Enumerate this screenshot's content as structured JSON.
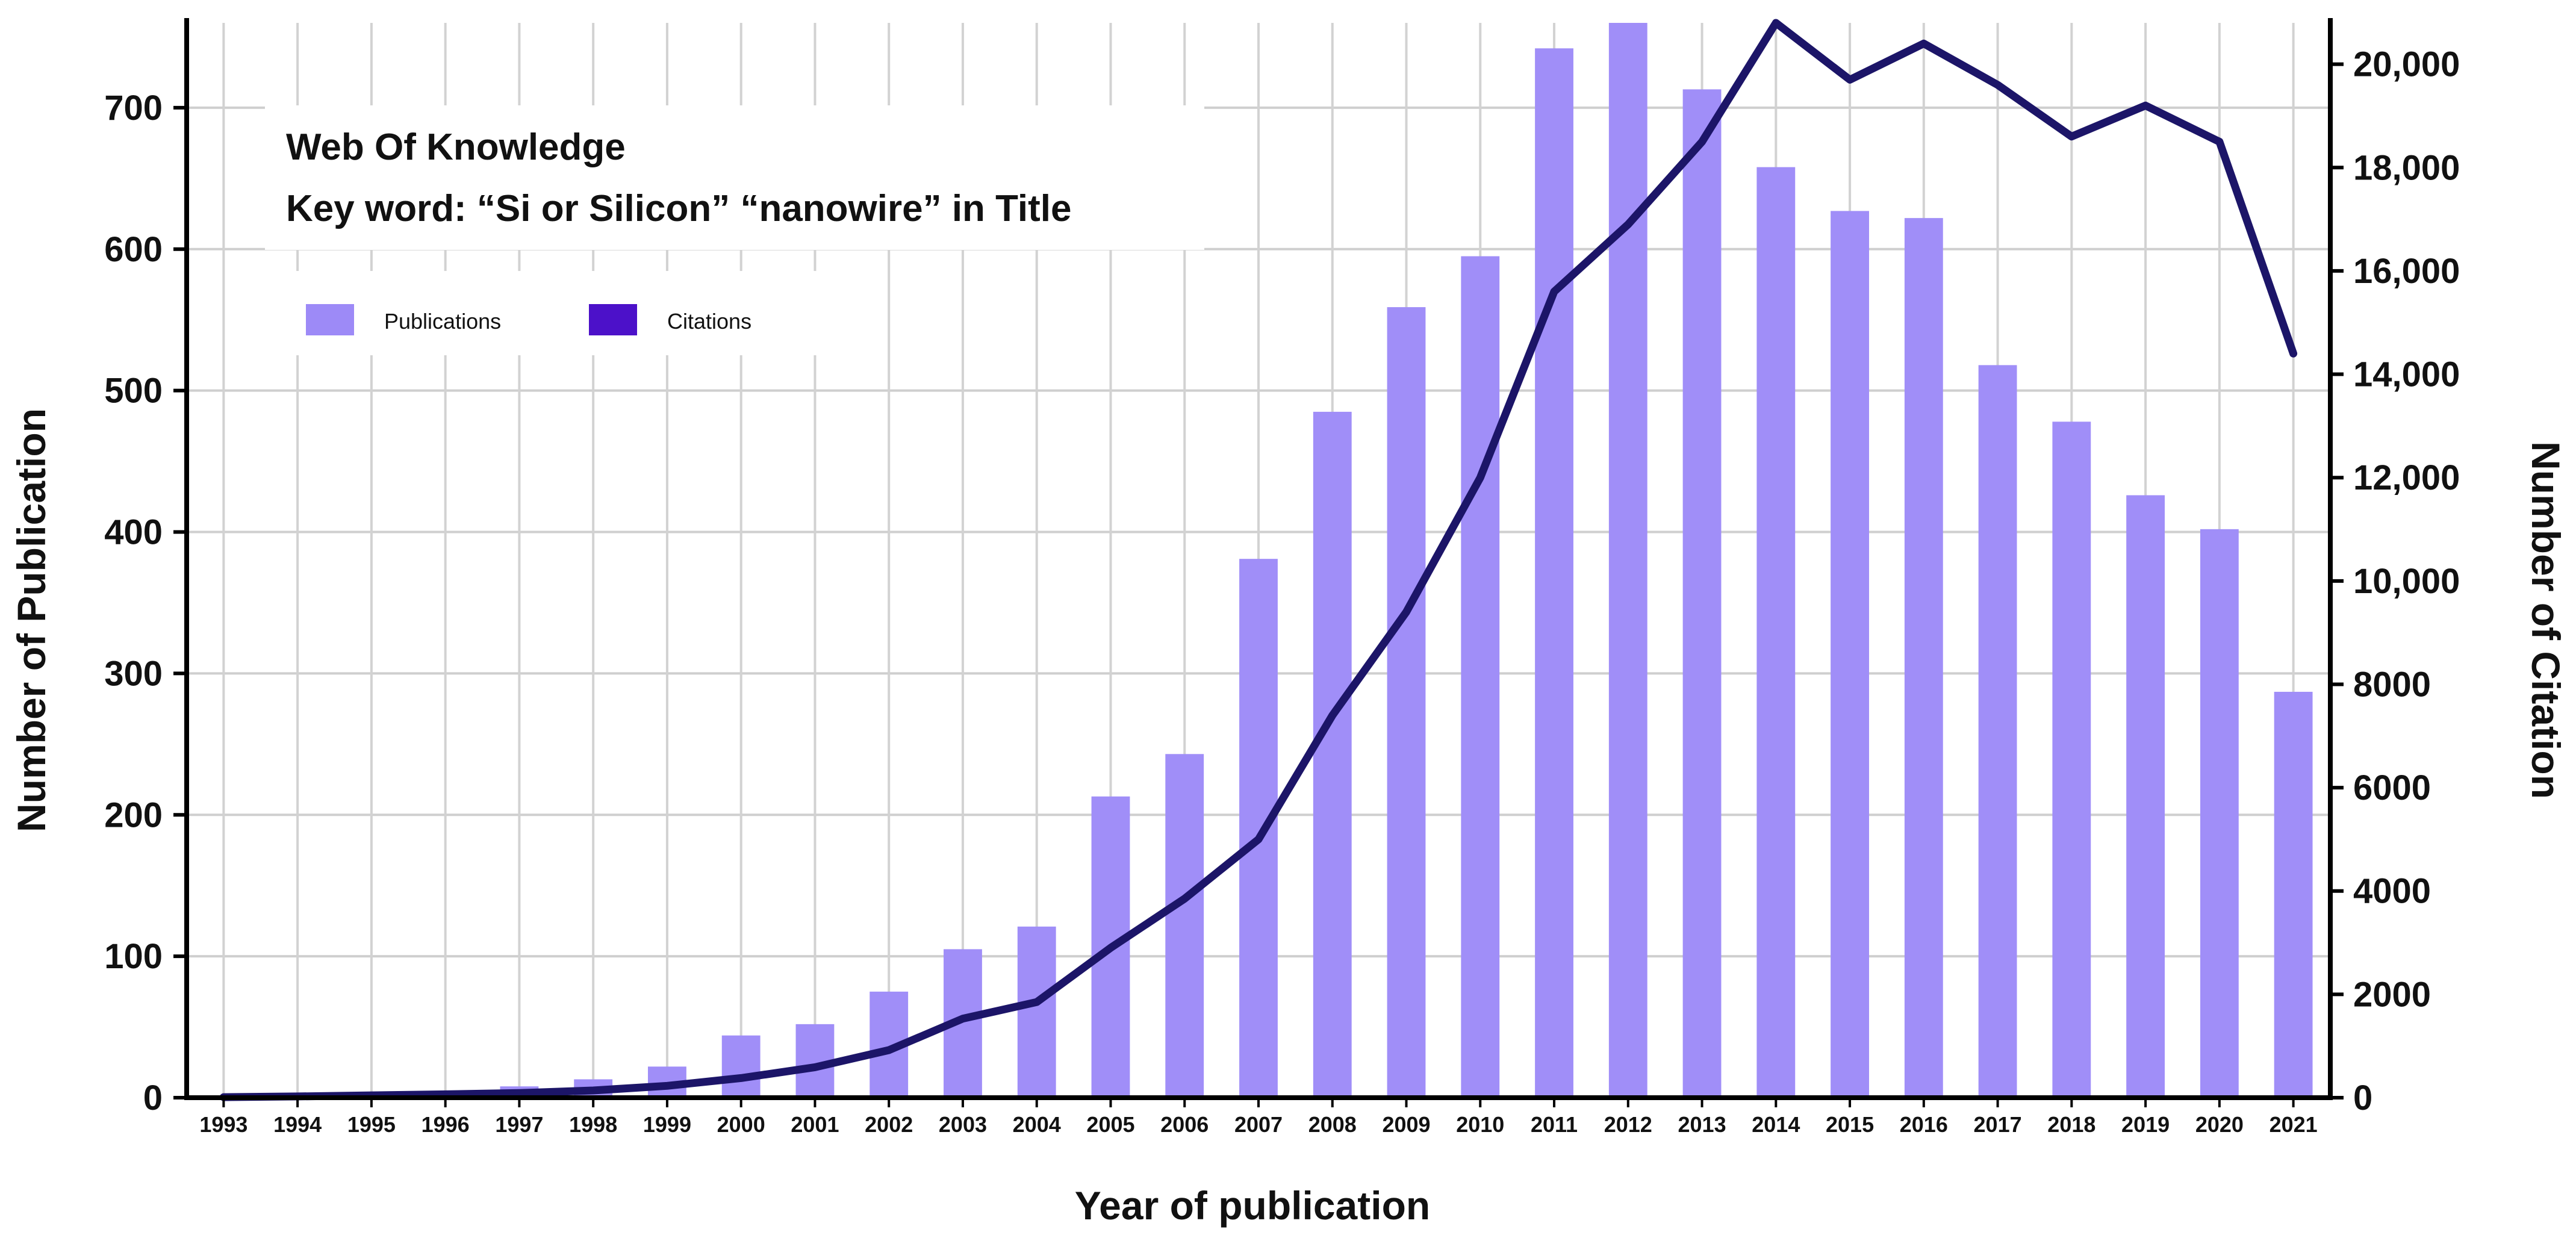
{
  "chart_data": {
    "type": "bar+line",
    "annotation": {
      "line1": "Web Of Knowledge",
      "line2": "Key word: “Si or Silicon” “nanowire” in Title"
    },
    "xlabel": "Year of publication",
    "ylabel_left": "Number of Publication",
    "ylabel_right": "Number of Citation",
    "ylim_left": [
      0,
      760
    ],
    "ylim_right": [
      0,
      20800
    ],
    "left_ticks": [
      {
        "value": 0,
        "label": "0"
      },
      {
        "value": 100,
        "label": "100"
      },
      {
        "value": 200,
        "label": "200"
      },
      {
        "value": 300,
        "label": "300"
      },
      {
        "value": 400,
        "label": "400"
      },
      {
        "value": 500,
        "label": "500"
      },
      {
        "value": 600,
        "label": "600"
      },
      {
        "value": 700,
        "label": "700"
      }
    ],
    "right_ticks": [
      {
        "value": 0,
        "label": "0"
      },
      {
        "value": 2000,
        "label": "2000"
      },
      {
        "value": 4000,
        "label": "4000"
      },
      {
        "value": 6000,
        "label": "6000"
      },
      {
        "value": 8000,
        "label": "8000"
      },
      {
        "value": 10000,
        "label": "10,000"
      },
      {
        "value": 12000,
        "label": "12,000"
      },
      {
        "value": 14000,
        "label": "14,000"
      },
      {
        "value": 16000,
        "label": "16,000"
      },
      {
        "value": 18000,
        "label": "18,000"
      },
      {
        "value": 20000,
        "label": "20,000"
      }
    ],
    "categories": [
      "1993",
      "1994",
      "1995",
      "1996",
      "1997",
      "1998",
      "1999",
      "2000",
      "2001",
      "2002",
      "2003",
      "2004",
      "2005",
      "2006",
      "2007",
      "2008",
      "2009",
      "2010",
      "2011",
      "2012",
      "2013",
      "2014",
      "2015",
      "2016",
      "2017",
      "2018",
      "2019",
      "2020",
      "2021"
    ],
    "legend": [
      {
        "name": "Publications",
        "color": "#9d8af7"
      },
      {
        "name": "Citations",
        "color": "#4c11c9"
      }
    ],
    "series": [
      {
        "name": "Publications",
        "axis": "left",
        "type": "bar",
        "color": "#a08ef8",
        "values": [
          1,
          2,
          3,
          4,
          8,
          13,
          22,
          44,
          52,
          75,
          105,
          121,
          213,
          243,
          381,
          485,
          559,
          595,
          742,
          760,
          713,
          658,
          627,
          622,
          518,
          478,
          426,
          402,
          287
        ]
      },
      {
        "name": "Citations",
        "axis": "right",
        "type": "line",
        "color": "#1c1568",
        "values": [
          10,
          25,
          45,
          65,
          90,
          140,
          230,
          380,
          590,
          920,
          1530,
          1850,
          2900,
          3850,
          5000,
          7400,
          9400,
          12000,
          15600,
          16900,
          18500,
          20800,
          19700,
          20400,
          19600,
          18600,
          19200,
          18500,
          14400
        ]
      }
    ]
  }
}
